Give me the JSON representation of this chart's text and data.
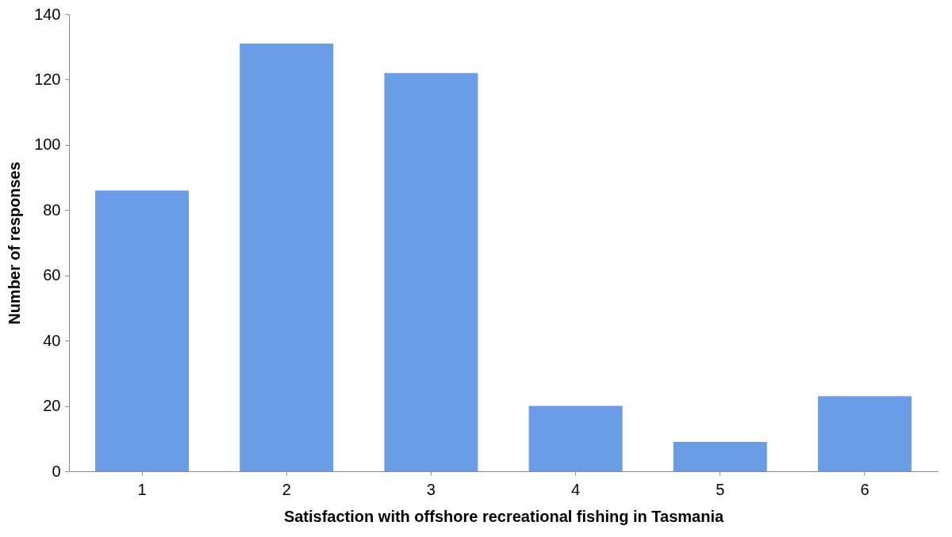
{
  "chart_data": {
    "type": "bar",
    "xlabel": "Satisfaction with offshore recreational fishing in Tasmania",
    "ylabel": "Number of responses",
    "categories": [
      "1",
      "2",
      "3",
      "4",
      "5",
      "6"
    ],
    "values": [
      86,
      131,
      122,
      20,
      9,
      23
    ],
    "color": "#6a9de6",
    "ylim": [
      0,
      140
    ],
    "yticks": [
      0,
      20,
      40,
      60,
      80,
      100,
      120,
      140
    ],
    "grid": false
  }
}
